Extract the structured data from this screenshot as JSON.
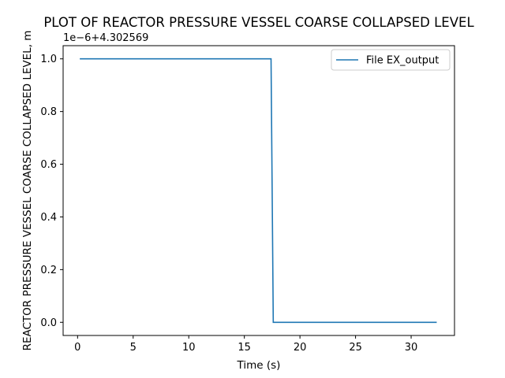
{
  "chart_data": {
    "type": "line",
    "title": "PLOT OF REACTOR PRESSURE VESSEL COARSE COLLAPSED LEVEL",
    "xlabel": "Time (s)",
    "ylabel": "REACTOR PRESSURE VESSEL COARSE COLLAPSED LEVEL, m",
    "offset_text": "1e−6+4.302569",
    "xlim": [
      -1.3,
      33.9
    ],
    "ylim": [
      -0.05,
      1.05
    ],
    "xticks": [
      0,
      5,
      10,
      15,
      20,
      25,
      30
    ],
    "xtick_labels": [
      "0",
      "5",
      "10",
      "15",
      "20",
      "25",
      "30"
    ],
    "yticks": [
      0.0,
      0.2,
      0.4,
      0.6,
      0.8,
      1.0
    ],
    "ytick_labels": [
      "0.0",
      "0.2",
      "0.4",
      "0.6",
      "0.8",
      "1.0"
    ],
    "grid": false,
    "legend_position": "top-right",
    "series": [
      {
        "name": "File EX_output",
        "color": "#1f77b4",
        "x": [
          0.2,
          17.4,
          17.6,
          32.3
        ],
        "y": [
          1.0,
          1.0,
          0.0,
          0.0
        ]
      }
    ]
  }
}
